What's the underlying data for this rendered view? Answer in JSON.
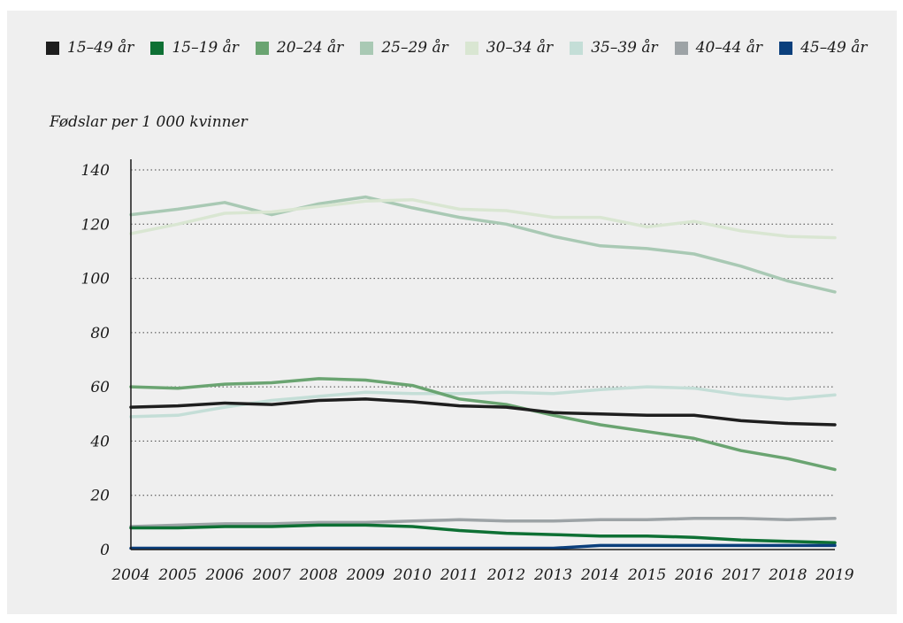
{
  "chart_data": {
    "type": "line",
    "ylabel": "Fødslar per 1 000 kvinner",
    "xlabel": "",
    "ylim": [
      0,
      140
    ],
    "yticks": [
      0,
      20,
      40,
      60,
      80,
      100,
      120,
      140
    ],
    "grid": "horizontal dotted",
    "legend_position": "top",
    "x": [
      "2004",
      "2005",
      "2006",
      "2007",
      "2008",
      "2009",
      "2010",
      "2011",
      "2012",
      "2013",
      "2014",
      "2015",
      "2016",
      "2017",
      "2018",
      "2019"
    ],
    "series": [
      {
        "name": "15–49 år",
        "color": "#1e1e1e",
        "values": [
          52.5,
          53,
          54,
          53.5,
          55,
          55.5,
          54.5,
          53,
          52.5,
          50.5,
          50,
          49.5,
          49.5,
          47.5,
          46.5,
          46
        ]
      },
      {
        "name": "15–19 år",
        "color": "#0e7034",
        "values": [
          8,
          8,
          8.5,
          8.5,
          9,
          9,
          8.5,
          7,
          6,
          5.5,
          5,
          5,
          4.5,
          3.5,
          3,
          2.5
        ]
      },
      {
        "name": "20–24 år",
        "color": "#6aa471",
        "values": [
          60,
          59.5,
          61,
          61.5,
          63,
          62.5,
          60.5,
          55.5,
          53.5,
          49.5,
          46,
          43.5,
          41,
          36.5,
          33.5,
          29.5
        ]
      },
      {
        "name": "25–29 år",
        "color": "#a9c9b4",
        "values": [
          123.5,
          125.5,
          128,
          123.5,
          127.5,
          130,
          126,
          122.5,
          120,
          115.5,
          112,
          111,
          109,
          104.5,
          99,
          95
        ]
      },
      {
        "name": "30–34 år",
        "color": "#d9e6d2",
        "values": [
          116.5,
          120,
          124,
          124.5,
          126.5,
          128.5,
          129,
          125.5,
          125,
          122.5,
          122.5,
          119,
          121,
          117.5,
          115.5,
          115
        ]
      },
      {
        "name": "35–39 år",
        "color": "#c4ded7",
        "values": [
          49,
          49.5,
          52.5,
          55,
          56.5,
          58,
          57.5,
          57.5,
          58,
          57.5,
          59,
          60,
          59.5,
          57,
          55.5,
          57
        ]
      },
      {
        "name": "40–44 år",
        "color": "#9da3a6",
        "values": [
          8.5,
          9,
          9.5,
          9.5,
          10,
          10,
          10.5,
          11,
          10.5,
          10.5,
          11,
          11,
          11.5,
          11.5,
          11,
          11.5
        ]
      },
      {
        "name": "45–49 år",
        "color": "#0b3f7c",
        "values": [
          0.5,
          0.5,
          0.5,
          0.5,
          0.5,
          0.5,
          0.5,
          0.5,
          0.5,
          0.5,
          1.5,
          1.5,
          1.5,
          1.5,
          1.5,
          1.5
        ]
      }
    ]
  }
}
